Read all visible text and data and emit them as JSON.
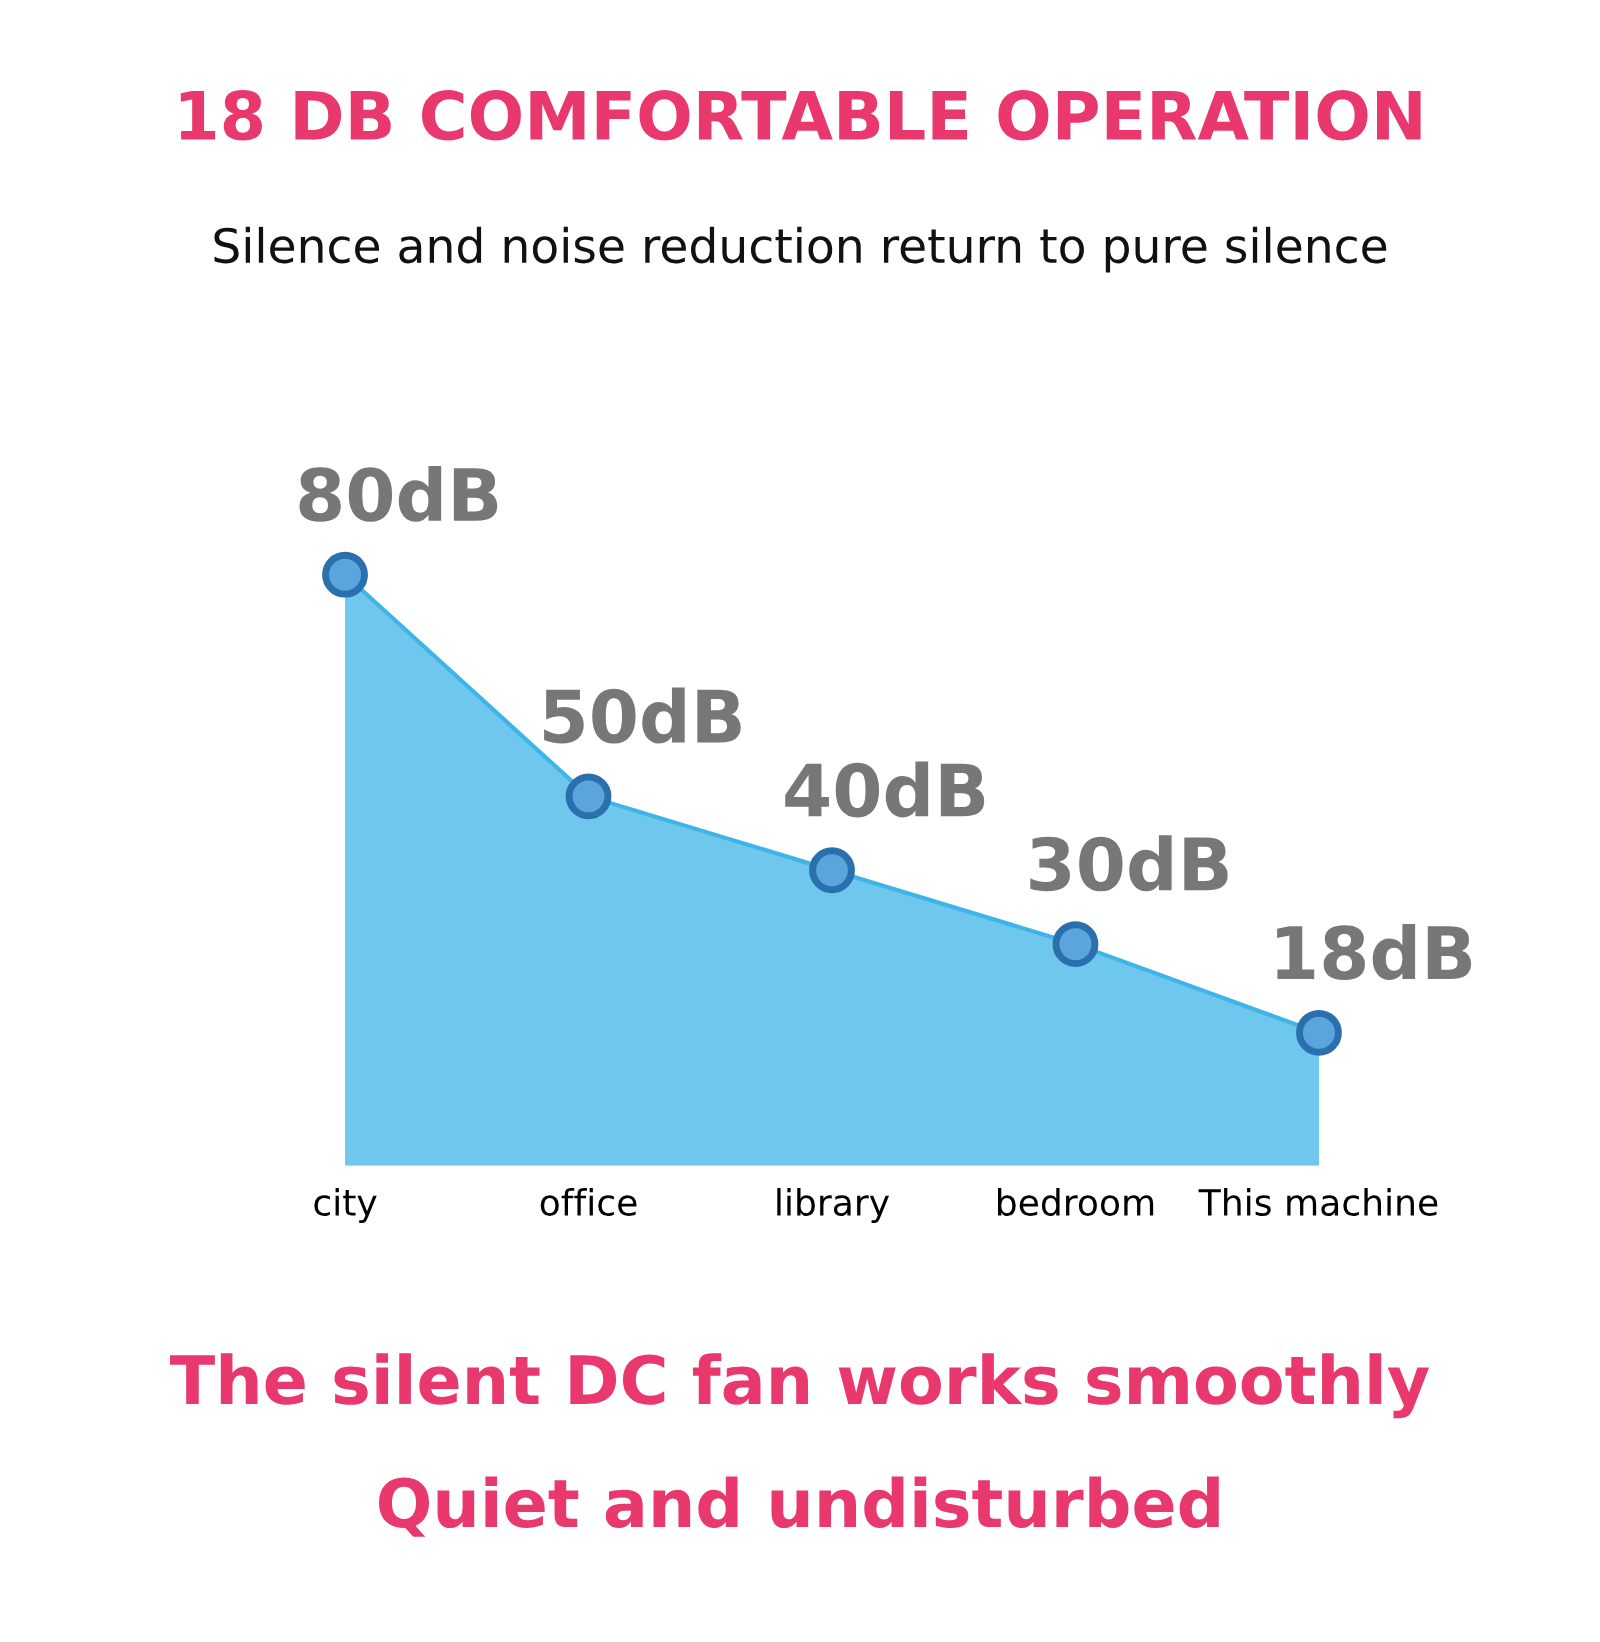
{
  "chart_data": {
    "type": "area",
    "title": "18 DB COMFORTABLE OPERATION",
    "subtitle": "Silence and noise reduction return to pure silence",
    "categories": [
      "city",
      "office",
      "library",
      "bedroom",
      "This machine"
    ],
    "values": [
      80,
      50,
      40,
      30,
      18
    ],
    "color": "#3fb4e8",
    "marker": "circle",
    "value_labels": [
      "80dB",
      "50dB",
      "40dB",
      "30dB",
      "18dB"
    ],
    "annotations": [
      "The silent DC fan works smoothly",
      "Quiet and undisturbed"
    ]
  }
}
